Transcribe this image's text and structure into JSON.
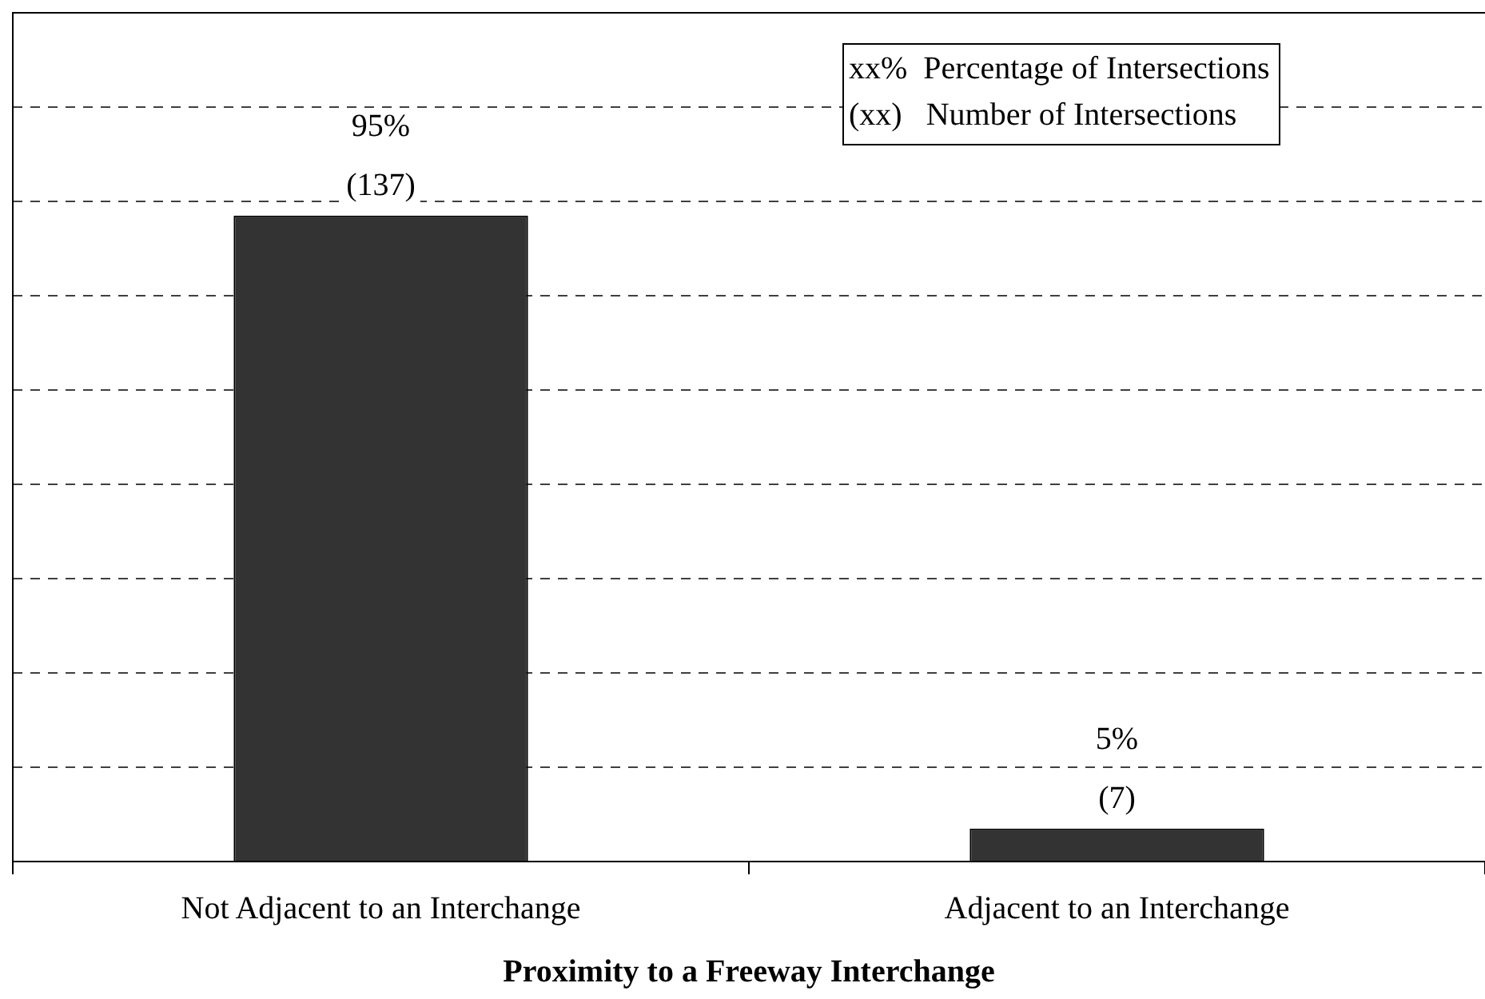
{
  "chart_data": {
    "type": "bar",
    "xlabel": "Proximity to a Freeway Interchange",
    "categories": [
      "Not Adjacent to an Interchange",
      "Adjacent to an Interchange"
    ],
    "values": [
      137,
      7
    ],
    "color": "#333333",
    "value_labels": [
      "(137)",
      "(7)"
    ],
    "ylim": [
      0,
      180
    ],
    "yticks": [
      {
        "value": 0,
        "label": null
      },
      {
        "value": 20,
        "label": null
      },
      {
        "value": 40,
        "label": null
      },
      {
        "value": 60,
        "label": null
      },
      {
        "value": 80,
        "label": null
      },
      {
        "value": 100,
        "label": null
      },
      {
        "value": 120,
        "label": null
      },
      {
        "value": 140,
        "label": null
      },
      {
        "value": 160,
        "label": null
      },
      {
        "value": 180,
        "label": null
      }
    ],
    "tick_labels": "x",
    "grid": "y",
    "line_style": "dashed",
    "annotations": [
      {
        "text": "95%",
        "x": "Not Adjacent to an Interchange",
        "y": 137
      },
      {
        "text": "5%",
        "x": "Adjacent to an Interchange",
        "y": 7
      },
      "xx%  Percentage of Intersections",
      "(xx)   Number of Intersections"
    ]
  }
}
